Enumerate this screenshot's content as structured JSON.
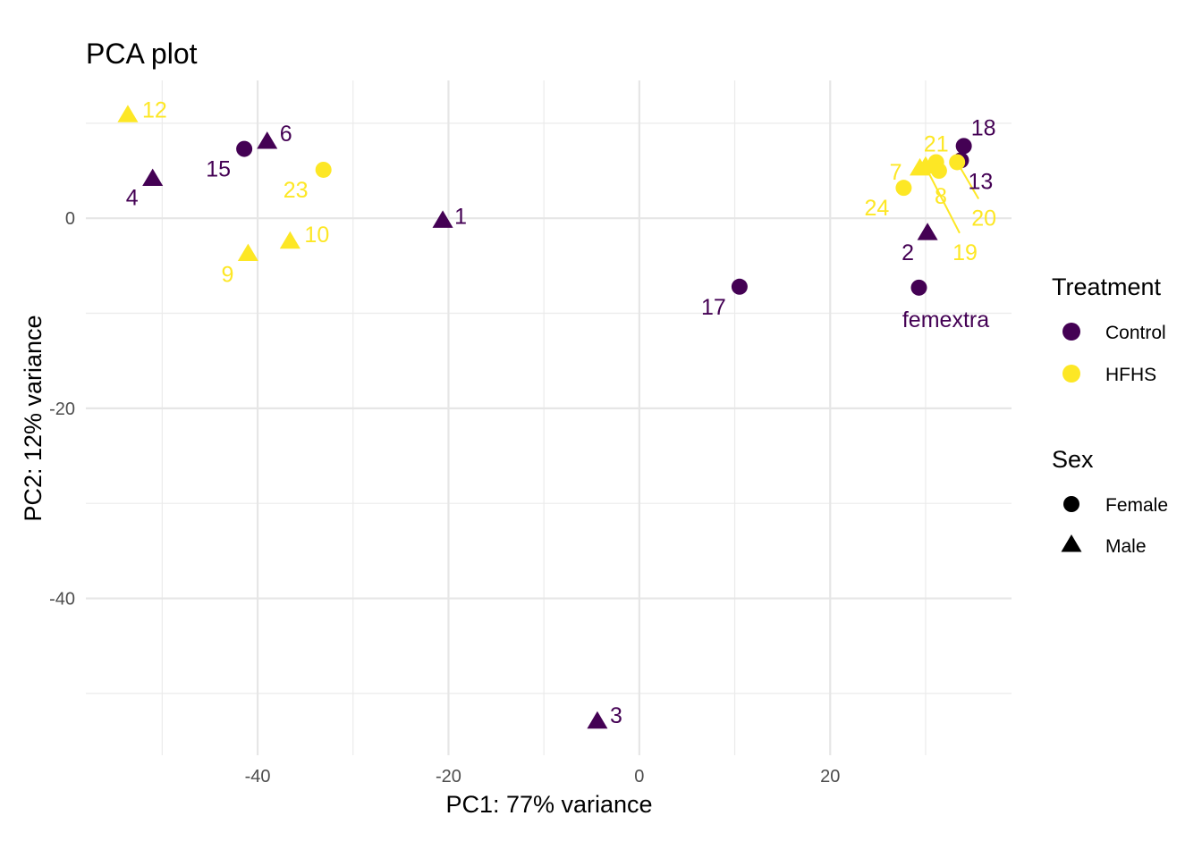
{
  "chart_data": {
    "type": "scatter",
    "title": "PCA plot",
    "xlabel": "PC1: 77% variance",
    "ylabel": "PC2: 12% variance",
    "xlim": [
      -58,
      39
    ],
    "ylim": [
      -56.5,
      14.5
    ],
    "x_ticks": [
      -40,
      -20,
      0,
      20
    ],
    "y_ticks": [
      0,
      -20,
      -40
    ],
    "grid": true,
    "legend_position": "right",
    "colors": {
      "Control": "#440154",
      "HFHS": "#fde725"
    },
    "legends": {
      "treatment": {
        "title": "Treatment",
        "items": [
          "Control",
          "HFHS"
        ]
      },
      "sex": {
        "title": "Sex",
        "items": [
          "Female",
          "Male"
        ]
      }
    },
    "points": [
      {
        "label": "12",
        "x": -53.6,
        "y": 10.8,
        "treatment": "HFHS",
        "sex": "Male"
      },
      {
        "label": "6",
        "x": -39.0,
        "y": 8.0,
        "treatment": "Control",
        "sex": "Male"
      },
      {
        "label": "15",
        "x": -41.4,
        "y": 7.3,
        "treatment": "Control",
        "sex": "Female"
      },
      {
        "label": "23",
        "x": -33.1,
        "y": 5.1,
        "treatment": "HFHS",
        "sex": "Female"
      },
      {
        "label": "4",
        "x": -51.0,
        "y": 4.1,
        "treatment": "Control",
        "sex": "Male"
      },
      {
        "label": "1",
        "x": -20.6,
        "y": -0.3,
        "treatment": "Control",
        "sex": "Male"
      },
      {
        "label": "10",
        "x": -36.6,
        "y": -2.5,
        "treatment": "HFHS",
        "sex": "Male"
      },
      {
        "label": "9",
        "x": -41.0,
        "y": -3.8,
        "treatment": "HFHS",
        "sex": "Male"
      },
      {
        "label": "17",
        "x": 10.5,
        "y": -7.2,
        "treatment": "Control",
        "sex": "Female"
      },
      {
        "label": "3",
        "x": -4.4,
        "y": -53.0,
        "treatment": "Control",
        "sex": "Male"
      },
      {
        "label": "18",
        "x": 34.0,
        "y": 7.6,
        "treatment": "Control",
        "sex": "Female"
      },
      {
        "label": "13",
        "x": 33.7,
        "y": 6.1,
        "treatment": "Control",
        "sex": "Female"
      },
      {
        "label": "21",
        "x": 31.1,
        "y": 5.9,
        "treatment": "HFHS",
        "sex": "Female"
      },
      {
        "label": "20",
        "x": 33.3,
        "y": 5.9,
        "treatment": "HFHS",
        "sex": "Female"
      },
      {
        "label": "7",
        "x": 29.4,
        "y": 5.2,
        "treatment": "HFHS",
        "sex": "Male"
      },
      {
        "label": "8",
        "x": 31.4,
        "y": 5.0,
        "treatment": "HFHS",
        "sex": "Female"
      },
      {
        "label": "24",
        "x": 27.7,
        "y": 3.2,
        "treatment": "HFHS",
        "sex": "Female"
      },
      {
        "label": "2",
        "x": 30.2,
        "y": -1.6,
        "treatment": "Control",
        "sex": "Male"
      },
      {
        "label": "19",
        "x": 30.0,
        "y": 5.4,
        "treatment": "HFHS",
        "sex": "Male"
      },
      {
        "label": "femextra",
        "x": 29.3,
        "y": -7.3,
        "treatment": "Control",
        "sex": "Female"
      }
    ]
  }
}
